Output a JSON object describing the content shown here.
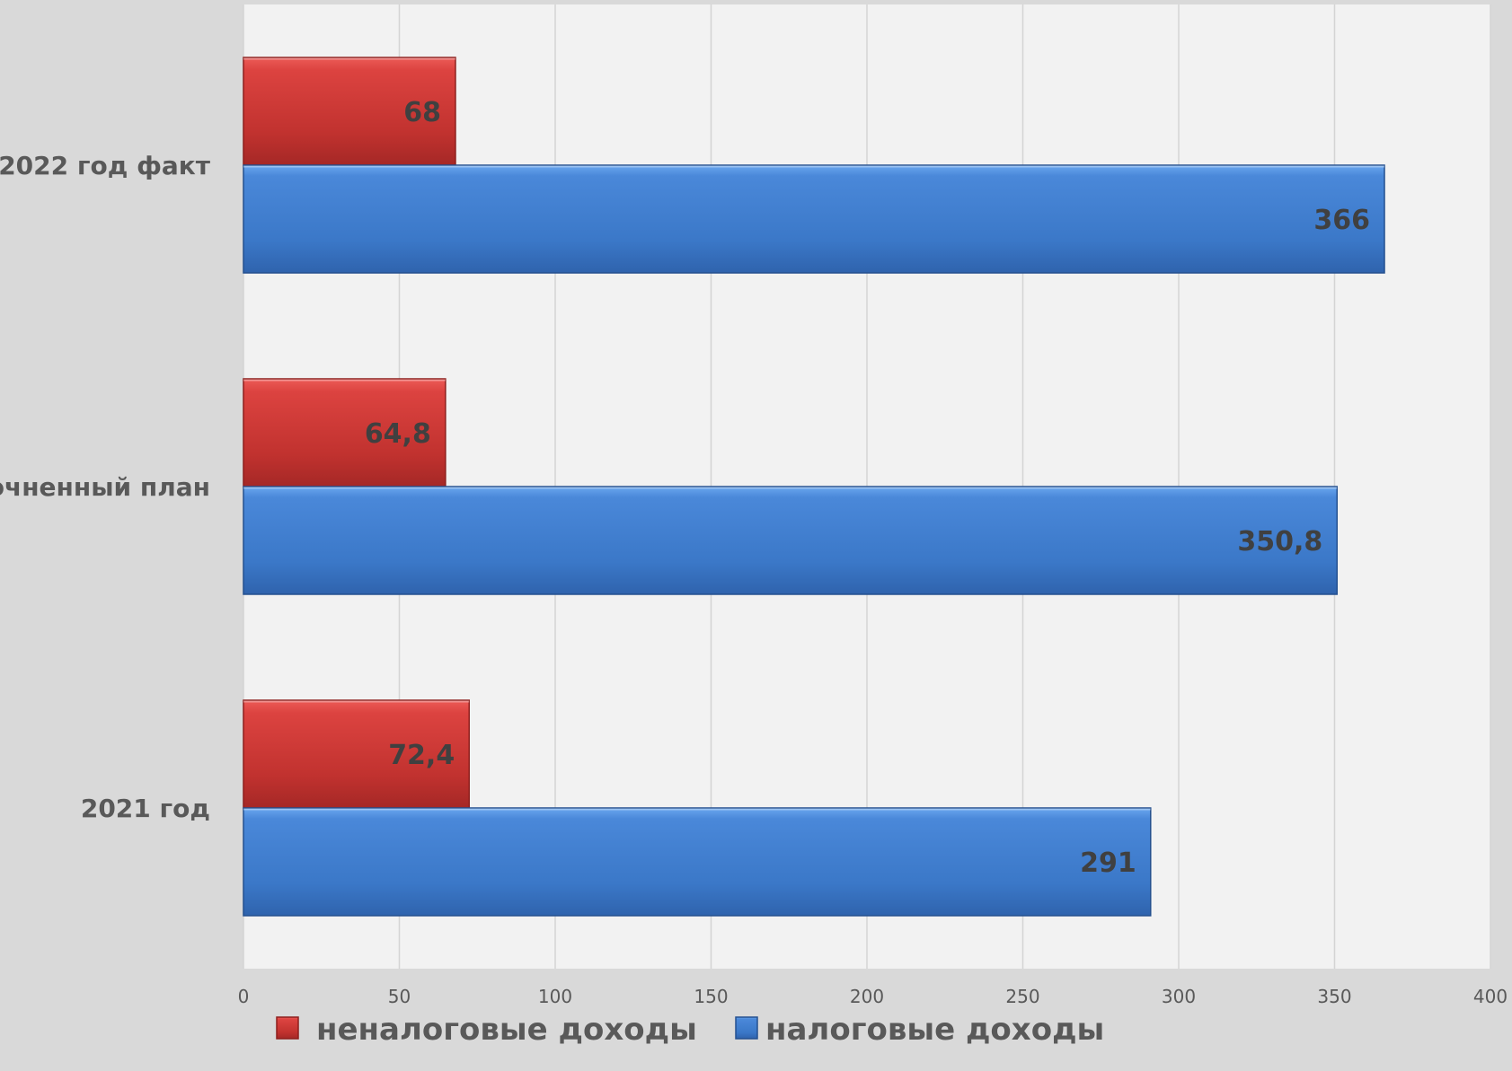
{
  "chart_data": {
    "type": "bar",
    "orientation": "horizontal",
    "categories": [
      "2021 год",
      "уточненный план",
      "2022 год факт"
    ],
    "series": [
      {
        "name": "неналоговые доходы",
        "values": [
          72.4,
          64.8,
          68
        ],
        "labels": [
          "72,4",
          "64,8",
          "68"
        ],
        "color": "#c9302c"
      },
      {
        "name": "налоговые доходы",
        "values": [
          291,
          350.8,
          366
        ],
        "labels": [
          "291",
          "350,8",
          "366"
        ],
        "color": "#3a78c9"
      }
    ],
    "xlim": [
      0,
      400
    ],
    "xticks": [
      "0",
      "50",
      "100",
      "150",
      "200",
      "250",
      "300",
      "350",
      "400"
    ],
    "grid": true,
    "legend_position": "bottom",
    "title": "",
    "xlabel": "",
    "ylabel": ""
  }
}
